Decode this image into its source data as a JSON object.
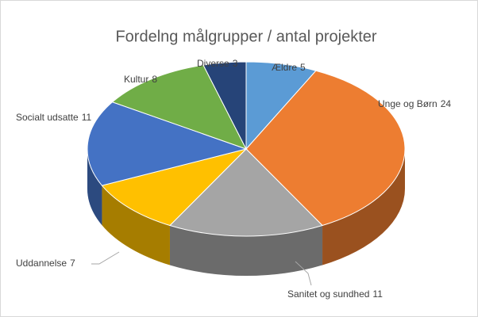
{
  "chart_data": {
    "type": "pie3d",
    "title": "Fordelng målgrupper / antal projekter",
    "categories": [
      "Ældre",
      "Unge og Børn",
      "Sanitet og sundhed",
      "Uddannelse",
      "Socialt udsatte",
      "Kultur",
      "Diverse"
    ],
    "values": [
      5,
      24,
      11,
      7,
      11,
      8,
      3
    ],
    "colors": [
      "#5b9bd5",
      "#ed7d31",
      "#a5a5a5",
      "#ffc000",
      "#4472c4",
      "#70ad47",
      "#264478"
    ]
  }
}
